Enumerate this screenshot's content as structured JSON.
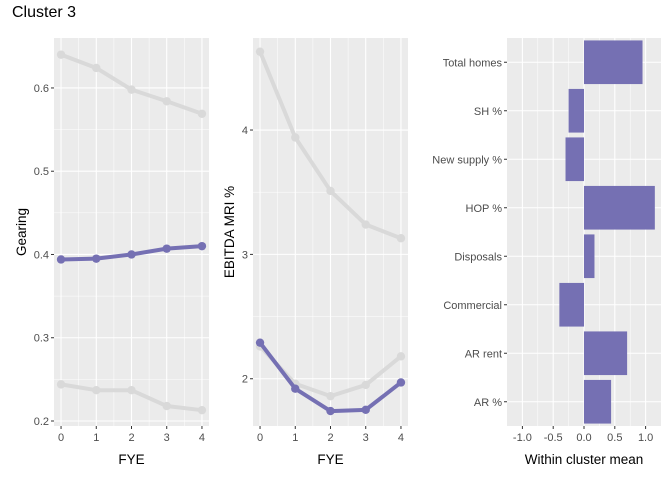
{
  "title": "Cluster 3",
  "colors": {
    "panel_bg": "#EBEBEB",
    "grid_major": "#FFFFFF",
    "highlight": "#7570B3",
    "muted": "#D9D9D9",
    "tick_text": "#4D4D4D"
  },
  "chart_data": [
    {
      "type": "line",
      "xlabel": "FYE",
      "ylabel": "Gearing",
      "x": [
        0,
        1,
        2,
        3,
        4
      ],
      "xlim": [
        -0.2,
        4.2
      ],
      "ylim": [
        0.194,
        0.66
      ],
      "yticks": [
        0.2,
        0.3,
        0.4,
        0.5,
        0.6
      ],
      "ytick_labels": [
        "0.2",
        "0.3",
        "0.4",
        "0.5",
        "0.6"
      ],
      "xtick_labels": [
        "0",
        "1",
        "2",
        "3",
        "4"
      ],
      "grid": true,
      "series": [
        {
          "values": [
            0.64,
            0.624,
            0.598,
            0.584,
            0.569
          ],
          "highlight": false
        },
        {
          "values": [
            0.244,
            0.237,
            0.237,
            0.218,
            0.213
          ],
          "highlight": false
        },
        {
          "values": [
            0.394,
            0.395,
            0.4,
            0.407,
            0.41
          ],
          "highlight": true
        }
      ]
    },
    {
      "type": "line",
      "xlabel": "FYE",
      "ylabel": "EBITDA MRI %",
      "x": [
        0,
        1,
        2,
        3,
        4
      ],
      "xlim": [
        -0.2,
        4.2
      ],
      "ylim": [
        1.62,
        4.74
      ],
      "yticks": [
        2,
        3,
        4
      ],
      "ytick_labels": [
        "2",
        "3",
        "4"
      ],
      "xtick_labels": [
        "0",
        "1",
        "2",
        "3",
        "4"
      ],
      "grid": true,
      "series": [
        {
          "values": [
            4.63,
            3.94,
            3.51,
            3.24,
            3.13
          ],
          "highlight": false
        },
        {
          "values": [
            2.26,
            1.96,
            1.86,
            1.95,
            2.18
          ],
          "highlight": false
        },
        {
          "values": [
            2.29,
            1.92,
            1.74,
            1.75,
            1.97
          ],
          "highlight": true
        }
      ]
    },
    {
      "type": "bar",
      "orientation": "horizontal",
      "xlabel": "Within cluster mean",
      "ylabel": "",
      "categories": [
        "Total homes",
        "SH %",
        "New supply %",
        "HOP %",
        "Disposals",
        "Commercial",
        "AR rent",
        "AR %"
      ],
      "values": [
        0.95,
        -0.25,
        -0.3,
        1.15,
        0.17,
        -0.4,
        0.7,
        0.44
      ],
      "xlim": [
        -1.25,
        1.25
      ],
      "xticks": [
        -1.0,
        -0.5,
        0.0,
        0.5,
        1.0
      ],
      "xtick_labels": [
        "-1.0",
        "-0.5",
        "0.0",
        "0.5",
        "1.0"
      ],
      "grid": true
    }
  ]
}
